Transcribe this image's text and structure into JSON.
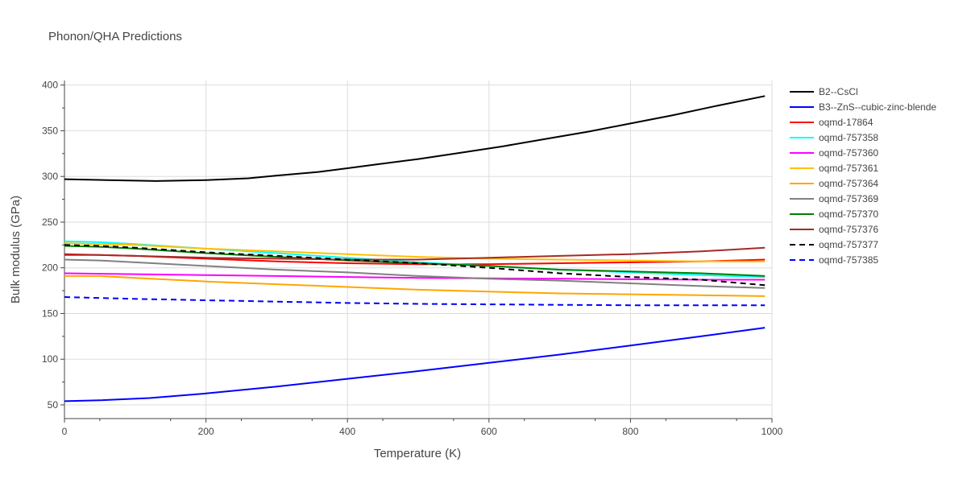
{
  "chart_data": {
    "type": "line",
    "title": "Phonon/QHA Predictions",
    "xlabel": "Temperature (K)",
    "ylabel": "Bulk modulus (GPa)",
    "xlim": [
      0,
      1000
    ],
    "ylim": [
      35,
      405
    ],
    "xticks": [
      0,
      200,
      400,
      600,
      800,
      1000
    ],
    "yticks": [
      50,
      100,
      150,
      200,
      250,
      300,
      350,
      400
    ],
    "grid": true,
    "legend": "right",
    "series": [
      {
        "name": "B2--CsCl",
        "color": "#000000",
        "dash": false,
        "x": [
          0,
          60,
          130,
          200,
          260,
          300,
          360,
          400,
          440,
          500,
          560,
          620,
          680,
          740,
          800,
          860,
          920,
          990
        ],
        "y": [
          297,
          296,
          295,
          296,
          298,
          301,
          305,
          309,
          313,
          319,
          326,
          333,
          341,
          349,
          358,
          367,
          377,
          388
        ]
      },
      {
        "name": "B3--ZnS--cubic-zinc-blende",
        "color": "#0000ff",
        "dash": false,
        "x": [
          0,
          50,
          120,
          200,
          300,
          400,
          500,
          600,
          700,
          800,
          900,
          990
        ],
        "y": [
          54,
          55,
          57.5,
          62.5,
          70,
          78.5,
          87,
          96,
          105,
          115,
          125,
          134.5
        ]
      },
      {
        "name": "oqmd-17864",
        "color": "#ff0000",
        "dash": false,
        "x": [
          0,
          50,
          100,
          200,
          300,
          400,
          500,
          600,
          700,
          800,
          900,
          990
        ],
        "y": [
          215,
          214,
          213,
          210,
          207,
          205,
          204,
          204,
          205,
          206,
          207,
          209
        ]
      },
      {
        "name": "oqmd-757358",
        "color": "#00ffff",
        "dash": false,
        "x": [
          0,
          50,
          100,
          200,
          300,
          400,
          500,
          600,
          700,
          800,
          900,
          990
        ],
        "y": [
          229,
          228,
          226,
          221,
          216,
          211,
          206,
          202,
          198,
          195,
          192,
          190
        ]
      },
      {
        "name": "oqmd-757360",
        "color": "#ff00ff",
        "dash": false,
        "x": [
          0,
          100,
          200,
          300,
          400,
          500,
          600,
          700,
          800,
          900,
          990
        ],
        "y": [
          194,
          193,
          192,
          191,
          190,
          189,
          188.5,
          188,
          187.5,
          187,
          187
        ]
      },
      {
        "name": "oqmd-757361",
        "color": "#ffc000",
        "dash": false,
        "x": [
          0,
          50,
          100,
          200,
          300,
          400,
          500,
          600,
          700,
          800,
          900,
          990
        ],
        "y": [
          227,
          226,
          225,
          221,
          218,
          215,
          212,
          210,
          209,
          208,
          207,
          207
        ]
      },
      {
        "name": "oqmd-757364",
        "color": "#ffa500",
        "dash": false,
        "x": [
          0,
          50,
          100,
          200,
          300,
          400,
          500,
          600,
          700,
          800,
          900,
          990
        ],
        "y": [
          191,
          191,
          189,
          185,
          182,
          179,
          176,
          174,
          172,
          171,
          170,
          169
        ]
      },
      {
        "name": "oqmd-757369",
        "color": "#808080",
        "dash": false,
        "x": [
          0,
          50,
          100,
          200,
          300,
          400,
          500,
          600,
          700,
          800,
          900,
          990
        ],
        "y": [
          209,
          208,
          206,
          202,
          198,
          195,
          191,
          188,
          186,
          183,
          180,
          178
        ]
      },
      {
        "name": "oqmd-757370",
        "color": "#008000",
        "dash": false,
        "x": [
          0,
          50,
          100,
          200,
          300,
          400,
          500,
          600,
          700,
          800,
          900,
          990
        ],
        "y": [
          224,
          223,
          221,
          216,
          212,
          208,
          205,
          202,
          198,
          196,
          194,
          191
        ]
      },
      {
        "name": "oqmd-757376",
        "color": "#a52a2a",
        "dash": false,
        "x": [
          0,
          50,
          100,
          200,
          300,
          400,
          500,
          600,
          700,
          800,
          900,
          990
        ],
        "y": [
          214,
          214,
          213,
          211,
          210,
          209,
          209,
          211,
          213,
          215,
          218,
          222
        ]
      },
      {
        "name": "oqmd-757377",
        "color": "#000000",
        "dash": true,
        "x": [
          0,
          50,
          100,
          200,
          300,
          400,
          500,
          600,
          700,
          800,
          900,
          990
        ],
        "y": [
          225,
          224,
          222,
          217,
          213,
          209,
          205,
          200,
          194,
          190,
          187,
          181
        ]
      },
      {
        "name": "oqmd-757385",
        "color": "#0000ff",
        "dash": true,
        "x": [
          0,
          50,
          100,
          200,
          300,
          400,
          500,
          600,
          700,
          800,
          900,
          990
        ],
        "y": [
          168,
          167,
          166,
          164.5,
          163,
          161.5,
          160.5,
          160,
          159.5,
          159,
          159,
          159
        ]
      }
    ]
  }
}
